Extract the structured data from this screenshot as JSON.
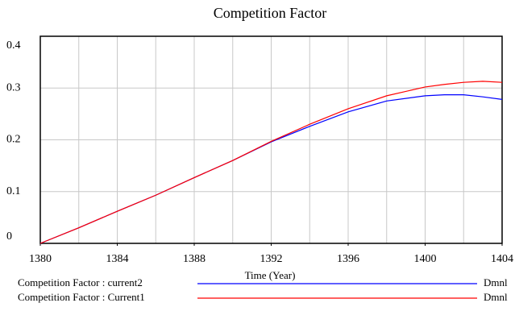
{
  "chart_data": {
    "type": "line",
    "title": "Competition Factor",
    "x_label": "Time (Year)",
    "x": [
      1380,
      1382,
      1384,
      1386,
      1388,
      1390,
      1392,
      1394,
      1396,
      1398,
      1400,
      1401,
      1402,
      1403,
      1404
    ],
    "series": [
      {
        "name": "Competition Factor : current2",
        "unit": "Dmnl",
        "color": "#0000ff",
        "values": [
          0,
          0.03,
          0.062,
          0.093,
          0.127,
          0.16,
          0.196,
          0.226,
          0.254,
          0.275,
          0.285,
          0.287,
          0.287,
          0.283,
          0.278
        ]
      },
      {
        "name": "Competition Factor : Current1",
        "unit": "Dmnl",
        "color": "#ff0000",
        "values": [
          0,
          0.03,
          0.062,
          0.093,
          0.127,
          0.16,
          0.197,
          0.23,
          0.26,
          0.285,
          0.302,
          0.307,
          0.311,
          0.313,
          0.311
        ]
      }
    ],
    "xlim": [
      1380,
      1404
    ],
    "xticks": [
      1380,
      1384,
      1388,
      1392,
      1396,
      1400,
      1404
    ],
    "xgrid": [
      1380,
      1382,
      1384,
      1386,
      1388,
      1390,
      1392,
      1394,
      1396,
      1398,
      1400,
      1402,
      1404
    ],
    "ylim": [
      0,
      0.4
    ],
    "yticks": [
      0,
      0.1,
      0.2,
      0.3,
      0.4
    ],
    "grid": true
  }
}
